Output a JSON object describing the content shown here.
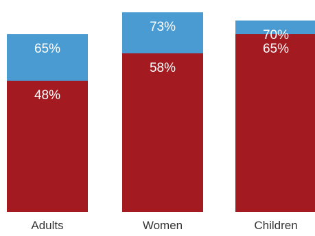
{
  "chart_data": {
    "type": "bar",
    "stacked": false,
    "overlapping": true,
    "categories": [
      "Adults",
      "Women",
      "Children"
    ],
    "series": [
      {
        "values": [
          65,
          73,
          70
        ],
        "color": "#4a9bd1"
      },
      {
        "values": [
          48,
          58,
          65
        ],
        "color": "#a31a20"
      }
    ],
    "value_labels": {
      "series_0": [
        "65%",
        "73%",
        "70%"
      ],
      "series_1": [
        "48%",
        "58%",
        "65%"
      ]
    },
    "ylim": [
      0,
      75
    ],
    "grid": false,
    "legend": "none",
    "title": "",
    "xlabel": "",
    "ylabel": ""
  }
}
